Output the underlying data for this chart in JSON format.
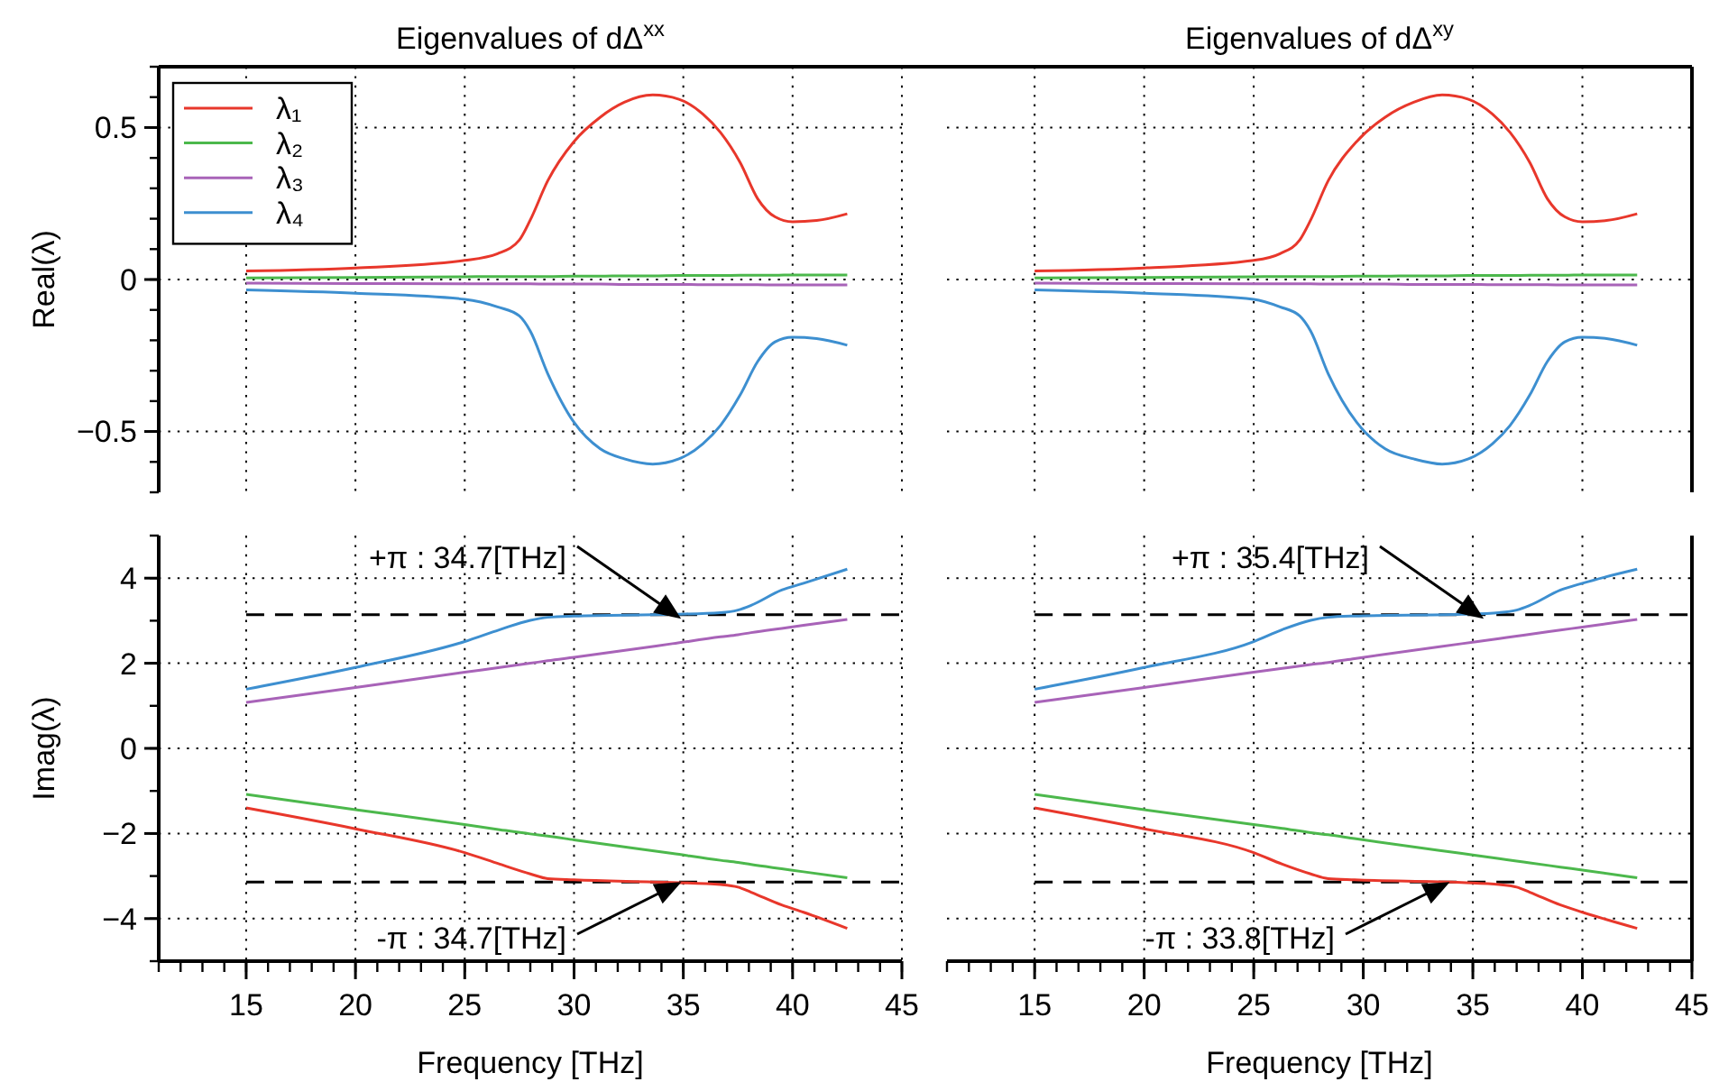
{
  "chart_data": [
    {
      "type": "line",
      "title": "Eigenvalues of dΔ$^{xx}$",
      "ylabel": "Real(λ)",
      "xlim": [
        11,
        45
      ],
      "xticks": [
        15,
        20,
        25,
        30,
        35,
        40,
        45
      ],
      "ylim": [
        -0.7,
        0.7
      ],
      "yticks": [
        {
          "value": -0.5,
          "label": "−0.5"
        },
        0,
        0.5
      ],
      "grid": true,
      "legend": "top left",
      "tick_labels": "y",
      "x": [
        15,
        20,
        25,
        26.5,
        27.5,
        28,
        28.8,
        30,
        31.2,
        32.3,
        33.6,
        34.8,
        35.9,
        36.7,
        37.6,
        38.4,
        39.2,
        40,
        41.1,
        42.5
      ],
      "series": [
        {
          "name": "λ₁",
          "color": "#e8372b",
          "values": [
            0.028,
            0.038,
            0.063,
            0.085,
            0.13,
            0.196,
            0.325,
            0.454,
            0.534,
            0.583,
            0.607,
            0.593,
            0.544,
            0.484,
            0.385,
            0.266,
            0.206,
            0.19,
            0.194,
            0.216
          ]
        },
        {
          "name": "λ₂",
          "color": "#4cb84c",
          "values": [
            0.005,
            0.007,
            0.009,
            0.01,
            0.01,
            0.01,
            0.01,
            0.011,
            0.011,
            0.012,
            0.012,
            0.013,
            0.013,
            0.013,
            0.014,
            0.014,
            0.014,
            0.015,
            0.015,
            0.015
          ]
        },
        {
          "name": "λ₃",
          "color": "#a863b8",
          "values": [
            -0.012,
            -0.013,
            -0.014,
            -0.014,
            -0.014,
            -0.014,
            -0.015,
            -0.015,
            -0.015,
            -0.016,
            -0.016,
            -0.016,
            -0.017,
            -0.017,
            -0.017,
            -0.017,
            -0.018,
            -0.018,
            -0.018,
            -0.018
          ]
        },
        {
          "name": "λ₄",
          "color": "#3d8fd0",
          "values": [
            -0.034,
            -0.045,
            -0.065,
            -0.09,
            -0.12,
            -0.17,
            -0.31,
            -0.47,
            -0.557,
            -0.59,
            -0.607,
            -0.59,
            -0.54,
            -0.48,
            -0.38,
            -0.27,
            -0.205,
            -0.19,
            -0.194,
            -0.216
          ]
        }
      ]
    },
    {
      "type": "line",
      "title": "Eigenvalues of dΔ$^{xy}$",
      "xlim": [
        11,
        45
      ],
      "xticks": [
        15,
        20,
        25,
        30,
        35,
        40,
        45
      ],
      "ylim": [
        -0.7,
        0.7
      ],
      "yticks": [
        -0.5,
        0,
        0.5
      ],
      "grid": true,
      "tick_labels": false,
      "x": [
        15,
        20,
        25,
        26.2,
        27.1,
        27.6,
        28.4,
        29.7,
        31.0,
        32.3,
        33.6,
        34.8,
        35.9,
        36.7,
        37.6,
        38.4,
        39.2,
        40,
        41.1,
        42.5
      ],
      "series": [
        {
          "color": "#e8372b",
          "values": [
            0.028,
            0.038,
            0.063,
            0.085,
            0.13,
            0.196,
            0.325,
            0.454,
            0.534,
            0.583,
            0.607,
            0.593,
            0.544,
            0.484,
            0.385,
            0.266,
            0.206,
            0.19,
            0.194,
            0.216
          ]
        },
        {
          "color": "#4cb84c",
          "values": [
            0.005,
            0.007,
            0.009,
            0.01,
            0.01,
            0.01,
            0.01,
            0.011,
            0.011,
            0.012,
            0.012,
            0.013,
            0.013,
            0.013,
            0.014,
            0.014,
            0.014,
            0.015,
            0.015,
            0.015
          ]
        },
        {
          "color": "#a863b8",
          "values": [
            -0.012,
            -0.013,
            -0.014,
            -0.014,
            -0.014,
            -0.014,
            -0.015,
            -0.015,
            -0.015,
            -0.016,
            -0.016,
            -0.016,
            -0.017,
            -0.017,
            -0.017,
            -0.017,
            -0.018,
            -0.018,
            -0.018,
            -0.018
          ]
        },
        {
          "color": "#3d8fd0",
          "values": [
            -0.034,
            -0.045,
            -0.065,
            -0.09,
            -0.12,
            -0.17,
            -0.31,
            -0.47,
            -0.557,
            -0.59,
            -0.607,
            -0.59,
            -0.54,
            -0.48,
            -0.38,
            -0.27,
            -0.205,
            -0.19,
            -0.194,
            -0.216
          ]
        }
      ]
    },
    {
      "type": "line",
      "xlabel": "Frequency [THz]",
      "ylabel": "Imag(λ)",
      "xlim": [
        11,
        45
      ],
      "xticks": [
        15,
        20,
        25,
        30,
        35,
        40,
        45
      ],
      "ylim": [
        -5,
        5
      ],
      "yticks": [
        {
          "value": -4,
          "label": "−4"
        },
        {
          "value": -2,
          "label": "−2"
        },
        0,
        2,
        4
      ],
      "grid": true,
      "x": [
        15,
        20,
        25,
        26.6,
        28,
        28.8,
        30,
        34.5,
        36.7,
        37.5,
        38.1,
        39.5,
        40.5,
        42.5
      ],
      "series": [
        {
          "color": "#e8372b",
          "values": [
            -1.4,
            -1.89,
            -2.45,
            -2.72,
            -2.95,
            -3.06,
            -3.09,
            -3.15,
            -3.2,
            -3.26,
            -3.38,
            -3.68,
            -3.85,
            -4.23
          ]
        },
        {
          "color": "#4cb84c",
          "values": [
            -1.08,
            -1.44,
            -1.79,
            -1.91,
            -2.01,
            -2.06,
            -2.15,
            -2.47,
            -2.63,
            -2.68,
            -2.73,
            -2.83,
            -2.9,
            -3.04
          ]
        },
        {
          "color": "#a863b8",
          "values": [
            1.08,
            1.43,
            1.79,
            1.9,
            2.0,
            2.06,
            2.14,
            2.46,
            2.62,
            2.67,
            2.72,
            2.82,
            2.89,
            3.03
          ]
        },
        {
          "color": "#3d8fd0",
          "values": [
            1.39,
            1.9,
            2.51,
            2.79,
            3.01,
            3.08,
            3.11,
            3.15,
            3.19,
            3.25,
            3.36,
            3.72,
            3.88,
            4.21
          ]
        }
      ],
      "ref_lines": [
        {
          "axis": "y",
          "value": 3.1416,
          "color": "#000000",
          "line_style": "dashed"
        },
        {
          "axis": "y",
          "value": -3.1416,
          "color": "#000000",
          "line_style": "dashed"
        }
      ],
      "annotations": [
        "+π : 34.7[THz]",
        "-π : 34.7[THz]"
      ]
    },
    {
      "type": "line",
      "xlabel": "Frequency [THz]",
      "xlim": [
        11,
        45
      ],
      "xticks": [
        15,
        20,
        25,
        30,
        35,
        40,
        45
      ],
      "ylim": [
        -5,
        5
      ],
      "yticks": [
        -4,
        -2,
        0,
        2,
        4
      ],
      "grid": true,
      "tick_labels": "x",
      "x": [
        15,
        20,
        25,
        26.3,
        27.6,
        28.4,
        29.6,
        34.5,
        36.2,
        37,
        37.6,
        39,
        40,
        42.5
      ],
      "series": [
        {
          "color": "#e8372b",
          "values": [
            -1.4,
            -1.89,
            -2.45,
            -2.72,
            -2.95,
            -3.06,
            -3.09,
            -3.15,
            -3.2,
            -3.26,
            -3.38,
            -3.68,
            -3.85,
            -4.23
          ]
        },
        {
          "color": "#4cb84c",
          "values": [
            -1.08,
            -1.44,
            -1.79,
            -1.88,
            -1.98,
            -2.03,
            -2.12,
            -2.47,
            -2.59,
            -2.65,
            -2.69,
            -2.79,
            -2.86,
            -3.04
          ]
        },
        {
          "color": "#a863b8",
          "values": [
            1.08,
            1.43,
            1.79,
            1.88,
            1.97,
            2.02,
            2.11,
            2.46,
            2.58,
            2.64,
            2.68,
            2.78,
            2.85,
            3.03
          ]
        },
        {
          "color": "#3d8fd0",
          "values": [
            1.39,
            1.9,
            2.51,
            2.79,
            3.01,
            3.08,
            3.11,
            3.15,
            3.19,
            3.25,
            3.36,
            3.72,
            3.88,
            4.21
          ]
        }
      ],
      "ref_lines": [
        {
          "axis": "y",
          "value": 3.1416,
          "color": "#000000",
          "line_style": "dashed"
        },
        {
          "axis": "y",
          "value": -3.1416,
          "color": "#000000",
          "line_style": "dashed"
        }
      ],
      "annotations": [
        "+π : 35.4[THz]",
        "-π : 33.8[THz]"
      ]
    }
  ]
}
